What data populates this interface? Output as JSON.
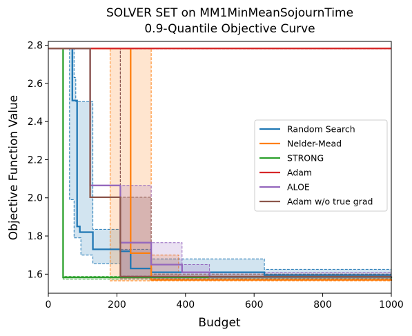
{
  "chart_data": {
    "type": "line",
    "title": [
      "SOLVER SET on MM1MinMeanSojournTime",
      "0.9-Quantile Objective Curve"
    ],
    "xlabel": "Budget",
    "ylabel": "Objective Function Value",
    "xlim": [
      0,
      1000
    ],
    "ylim": [
      1.5,
      2.82
    ],
    "xticks": [
      0,
      200,
      400,
      600,
      800,
      1000
    ],
    "yticks": [
      1.6,
      1.8,
      2.0,
      2.2,
      2.4,
      2.6,
      2.8
    ],
    "ytick_labels": [
      "1.6",
      "1.8",
      "2.0",
      "2.2",
      "2.4",
      "2.6",
      "2.8"
    ],
    "grid": false,
    "legend_position": "center-right",
    "series": [
      {
        "name": "Random Search",
        "color": "#1f77b4",
        "steps": [
          [
            0,
            2.783
          ],
          [
            70,
            2.51
          ],
          [
            84,
            1.85
          ],
          [
            92,
            1.82
          ],
          [
            130,
            1.73
          ],
          [
            210,
            1.72
          ],
          [
            240,
            1.63
          ],
          [
            300,
            1.61
          ],
          [
            630,
            1.595
          ],
          [
            1000,
            1.595
          ]
        ],
        "band_upper": [
          [
            0,
            2.783
          ],
          [
            75,
            2.63
          ],
          [
            80,
            2.505
          ],
          [
            130,
            1.835
          ],
          [
            210,
            1.73
          ],
          [
            300,
            1.68
          ],
          [
            630,
            1.625
          ],
          [
            1000,
            1.625
          ]
        ],
        "band_lower": [
          [
            0,
            2.783
          ],
          [
            62,
            1.99
          ],
          [
            75,
            1.79
          ],
          [
            95,
            1.7
          ],
          [
            130,
            1.655
          ],
          [
            210,
            1.59
          ],
          [
            300,
            1.585
          ],
          [
            630,
            1.58
          ],
          [
            1000,
            1.58
          ]
        ]
      },
      {
        "name": "Nelder-Mead",
        "color": "#ff7f0e",
        "steps": [
          [
            0,
            2.783
          ],
          [
            240,
            1.71
          ],
          [
            300,
            1.57
          ],
          [
            1000,
            1.565
          ]
        ],
        "band_upper": [
          [
            0,
            2.783
          ],
          [
            300,
            1.7
          ],
          [
            380,
            1.57
          ],
          [
            1000,
            1.57
          ]
        ],
        "band_lower": [
          [
            0,
            2.783
          ],
          [
            180,
            1.565
          ],
          [
            1000,
            1.56
          ]
        ]
      },
      {
        "name": "STRONG",
        "color": "#2ca02c",
        "steps": [
          [
            0,
            2.783
          ],
          [
            43,
            1.583
          ],
          [
            1000,
            1.578
          ]
        ],
        "band_upper": [
          [
            0,
            2.783
          ],
          [
            43,
            1.588
          ],
          [
            1000,
            1.585
          ]
        ],
        "band_lower": [
          [
            0,
            2.783
          ],
          [
            43,
            1.574
          ],
          [
            1000,
            1.572
          ]
        ]
      },
      {
        "name": "Adam",
        "color": "#d62728",
        "steps": [
          [
            0,
            2.783
          ],
          [
            1000,
            2.783
          ]
        ],
        "band_upper": [
          [
            0,
            2.785
          ],
          [
            1000,
            2.785
          ]
        ],
        "band_lower": [
          [
            0,
            2.781
          ],
          [
            1000,
            2.781
          ]
        ]
      },
      {
        "name": "ALOE",
        "color": "#9467bd",
        "steps": [
          [
            0,
            2.783
          ],
          [
            122,
            2.065
          ],
          [
            210,
            1.765
          ],
          [
            300,
            1.65
          ],
          [
            390,
            1.61
          ],
          [
            470,
            1.585
          ],
          [
            1000,
            1.583
          ]
        ],
        "band_upper": [
          [
            0,
            2.783
          ],
          [
            210,
            2.065
          ],
          [
            300,
            1.765
          ],
          [
            390,
            1.65
          ],
          [
            470,
            1.61
          ],
          [
            1000,
            1.59
          ]
        ],
        "band_lower": [
          [
            0,
            2.783
          ],
          [
            210,
            1.59
          ],
          [
            300,
            1.58
          ],
          [
            1000,
            1.575
          ]
        ]
      },
      {
        "name": "Adam w/o true grad",
        "color": "#8c564b",
        "steps": [
          [
            0,
            2.783
          ],
          [
            122,
            2.003
          ],
          [
            210,
            1.587
          ],
          [
            1000,
            1.587
          ]
        ],
        "band_upper": [
          [
            0,
            2.783
          ],
          [
            210,
            2.003
          ],
          [
            300,
            1.6
          ],
          [
            1000,
            1.595
          ]
        ],
        "band_lower": [
          [
            0,
            2.783
          ],
          [
            210,
            1.575
          ],
          [
            1000,
            1.575
          ]
        ]
      }
    ]
  }
}
